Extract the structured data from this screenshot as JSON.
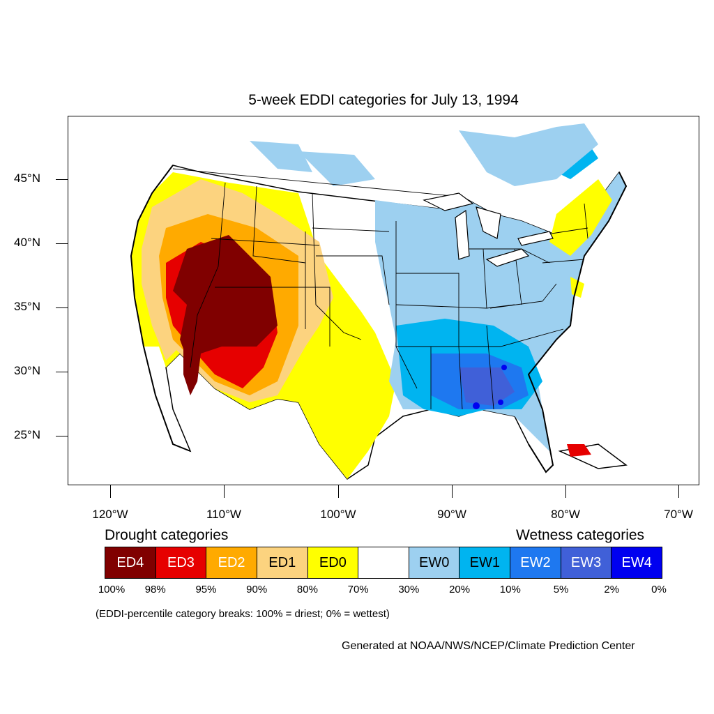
{
  "title": "5-week EDDI categories for July 13, 1994",
  "latitude_labels": [
    "45°N",
    "40°N",
    "35°N",
    "30°N",
    "25°N"
  ],
  "longitude_labels": [
    "120°W",
    "110°W",
    "100°W",
    "90°W",
    "80°W",
    "70°W"
  ],
  "legend": {
    "drought_heading": "Drought categories",
    "wetness_heading": "Wetness categories",
    "categories": [
      {
        "label": "ED4",
        "color": "#800000",
        "text_color": "#ffffff"
      },
      {
        "label": "ED3",
        "color": "#e60000",
        "text_color": "#ffffff"
      },
      {
        "label": "ED2",
        "color": "#ffaa00",
        "text_color": "#ffffff"
      },
      {
        "label": "ED1",
        "color": "#fcd37f",
        "text_color": "#000000"
      },
      {
        "label": "ED0",
        "color": "#ffff00",
        "text_color": "#000000"
      },
      {
        "label": "",
        "color": "#ffffff",
        "text_color": "#000000"
      },
      {
        "label": "EW0",
        "color": "#9dd0f0",
        "text_color": "#000000"
      },
      {
        "label": "EW1",
        "color": "#00b4f0",
        "text_color": "#000000"
      },
      {
        "label": "EW2",
        "color": "#1e78f0",
        "text_color": "#ffffff"
      },
      {
        "label": "EW3",
        "color": "#4060d8",
        "text_color": "#ffffff"
      },
      {
        "label": "EW4",
        "color": "#0000f0",
        "text_color": "#ffffff"
      }
    ],
    "percentiles": [
      "100%",
      "98%",
      "95%",
      "90%",
      "80%",
      "70%",
      "30%",
      "20%",
      "10%",
      "5%",
      "2%",
      "0%"
    ]
  },
  "note": "(EDDI-percentile category breaks: 100% = driest; 0% = wettest)",
  "credit": "Generated at NOAA/NWS/NCEP/Climate Prediction Center"
}
